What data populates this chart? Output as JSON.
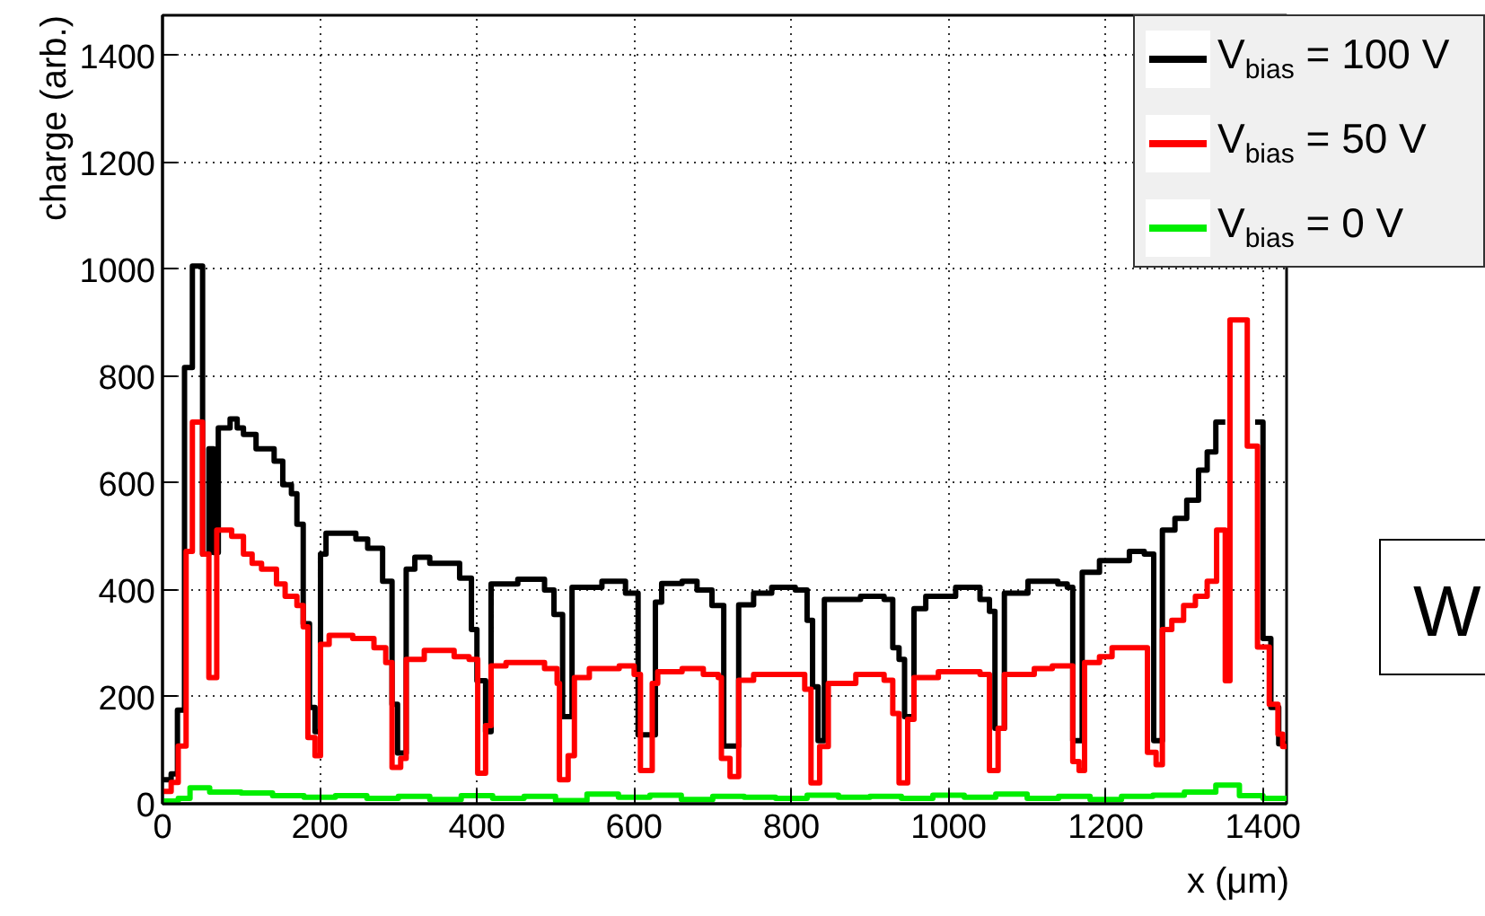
{
  "chart_data": {
    "type": "step",
    "xlabel": "x (μm)",
    "ylabel": "charge (arb.)",
    "xlim": [
      0,
      1430
    ],
    "ylim": [
      0,
      1475
    ],
    "xticks": [
      0,
      200,
      400,
      600,
      800,
      1000,
      1200,
      1400
    ],
    "yticks": [
      0,
      200,
      400,
      600,
      800,
      1000,
      1200,
      1400
    ],
    "grid": true,
    "legend": "top right",
    "line_style": "solid",
    "annotations": [
      "W"
    ],
    "series": [
      {
        "name": "V$_{bias}$ = 100 V",
        "color": "#000000",
        "x": [
          0,
          11,
          19,
          28,
          38,
          51,
          59,
          65,
          71,
          86,
          95,
          103,
          119,
          142,
          153,
          164,
          171,
          179,
          187,
          194,
          201,
          208,
          246,
          261,
          280,
          292,
          299,
          310,
          321,
          340,
          378,
          393,
          400,
          411,
          418,
          452,
          486,
          498,
          509,
          521,
          559,
          589,
          605,
          627,
          635,
          661,
          680,
          699,
          714,
          733,
          752,
          775,
          805,
          820,
          827,
          834,
          842,
          888,
          918,
          929,
          937,
          944,
          956,
          971,
          1009,
          1040,
          1052,
          1059,
          1071,
          1101,
          1139,
          1151,
          1158,
          1170,
          1192,
          1230,
          1249,
          1261,
          1272,
          1288,
          1303,
          1318,
          1329,
          1340,
          1352,
          1390,
          1400,
          1410,
          1420,
          1430
        ],
        "values": [
          45,
          56,
          175,
          816,
          1006,
          467,
          664,
          470,
          703,
          720,
          703,
          691,
          664,
          641,
          597,
          580,
          523,
          337,
          180,
          135,
          467,
          506,
          495,
          478,
          416,
          186,
          95,
          439,
          461,
          450,
          422,
          326,
          230,
          135,
          411,
          420,
          400,
          354,
          163,
          405,
          416,
          394,
          129,
          377,
          412,
          416,
          400,
          371,
          108,
          372,
          394,
          405,
          400,
          343,
          219,
          118,
          382,
          388,
          382,
          292,
          270,
          163,
          365,
          388,
          405,
          382,
          360,
          141,
          394,
          416,
          411,
          405,
          118,
          433,
          455,
          472,
          467,
          118,
          512,
          534,
          568,
          624,
          658,
          714,
          null,
          714,
          309,
          180,
          112,
          112
        ]
      },
      {
        "name": "V$_{bias}$ = 50 V",
        "color": "#ff0000",
        "x": [
          0,
          11,
          20,
          30,
          38,
          51,
          59,
          69,
          88,
          103,
          114,
          126,
          145,
          156,
          171,
          179,
          185,
          194,
          201,
          212,
          242,
          269,
          284,
          292,
          303,
          310,
          333,
          371,
          390,
          401,
          411,
          418,
          437,
          486,
          502,
          505,
          516,
          524,
          543,
          581,
          600,
          608,
          623,
          630,
          661,
          688,
          707,
          711,
          722,
          733,
          752,
          798,
          817,
          825,
          836,
          847,
          882,
          918,
          929,
          937,
          948,
          956,
          987,
          1040,
          1052,
          1063,
          1071,
          1109,
          1132,
          1151,
          1158,
          1166,
          1173,
          1192,
          1208,
          1246,
          1253,
          1264,
          1272,
          1284,
          1299,
          1314,
          1329,
          1341,
          1352,
          1358,
          1380,
          1393,
          1408,
          1419,
          1425,
          1430
        ],
        "values": [
          23,
          40,
          108,
          472,
          714,
          467,
          236,
          512,
          500,
          467,
          450,
          439,
          411,
          388,
          371,
          331,
          124,
          90,
          298,
          315,
          309,
          292,
          264,
          68,
          85,
          270,
          287,
          275,
          270,
          57,
          146,
          258,
          264,
          253,
          225,
          45,
          90,
          236,
          253,
          258,
          242,
          62,
          225,
          247,
          253,
          242,
          236,
          85,
          51,
          231,
          242,
          242,
          214,
          39,
          107,
          225,
          242,
          231,
          169,
          39,
          158,
          236,
          247,
          242,
          62,
          141,
          242,
          253,
          258,
          258,
          79,
          62,
          264,
          275,
          292,
          292,
          96,
          73,
          326,
          343,
          371,
          388,
          416,
          512,
          230,
          905,
          669,
          293,
          186,
          130,
          107,
          107
        ]
      },
      {
        "name": "V$_{bias}$ = 0 V",
        "color": "#00ee00",
        "x": [
          0,
          20,
          35,
          60,
          100,
          140,
          180,
          220,
          260,
          300,
          340,
          380,
          420,
          460,
          500,
          540,
          580,
          620,
          660,
          700,
          740,
          780,
          820,
          860,
          900,
          940,
          980,
          1020,
          1060,
          1100,
          1140,
          1180,
          1220,
          1260,
          1300,
          1340,
          1370,
          1400,
          1430
        ],
        "values": [
          5,
          10,
          30,
          22,
          20,
          15,
          12,
          15,
          10,
          14,
          8,
          15,
          10,
          14,
          6,
          18,
          12,
          16,
          8,
          14,
          12,
          10,
          16,
          12,
          14,
          10,
          16,
          12,
          18,
          10,
          14,
          8,
          14,
          16,
          22,
          35,
          15,
          10,
          10
        ]
      }
    ]
  }
}
